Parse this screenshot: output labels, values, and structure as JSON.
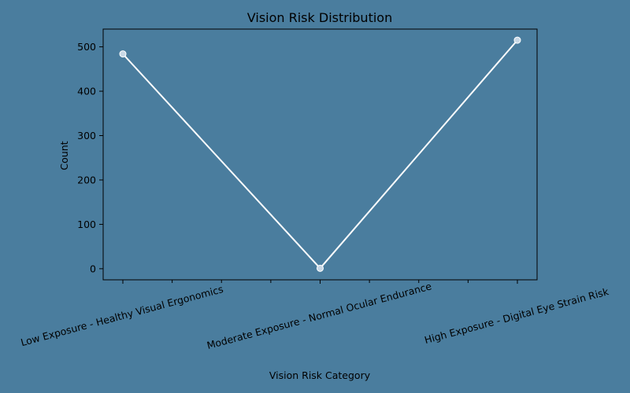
{
  "chart_data": {
    "type": "line",
    "title": "Vision Risk Distribution",
    "xlabel": "Vision Risk Category",
    "ylabel": "Count",
    "categories": [
      "Low Exposure - Healthy Visual Ergonomics",
      "Moderate Exposure - Normal Ocular Endurance",
      "High Exposure - Digital Eye Strain Risk"
    ],
    "series": [
      {
        "values": [
          484,
          1,
          515
        ]
      }
    ],
    "ylim": [
      -25,
      540
    ],
    "yticks": [
      0,
      100,
      200,
      300,
      400,
      500
    ],
    "grid": false,
    "line_color": "#ffffff",
    "marker_color": "#c8d8e6",
    "background_color": "#4a7d9e"
  }
}
